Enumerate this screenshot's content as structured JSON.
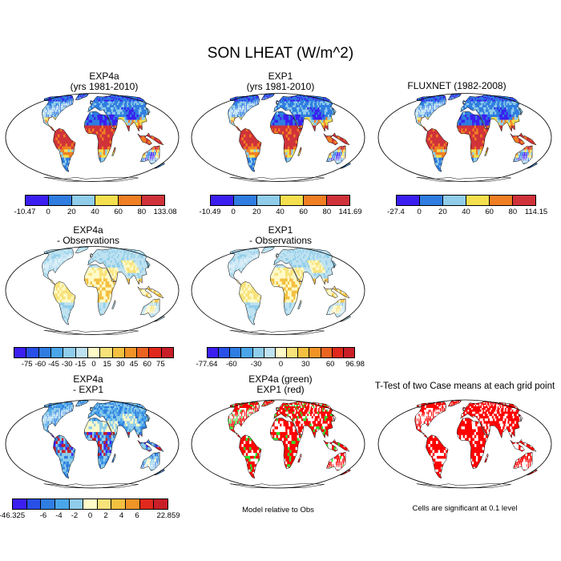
{
  "title": "SON LHEAT (W/m^2)",
  "panels": [
    {
      "id": "p1",
      "line1": "EXP4a",
      "line2": "(yrs 1981-2010)",
      "style": "heat"
    },
    {
      "id": "p2",
      "line1": "EXP1",
      "line2": "(yrs 1981-2010)",
      "style": "heat"
    },
    {
      "id": "p3",
      "line1": "FLUXNET (1982-2008)",
      "line2": "",
      "style": "heat"
    },
    {
      "id": "p4",
      "line1": "EXP4a",
      "line2": "- Observations",
      "style": "diff"
    },
    {
      "id": "p5",
      "line1": "EXP1",
      "line2": "- Observations",
      "style": "diff"
    },
    {
      "id": "p6",
      "line1": "EXP4a",
      "line2": "- EXP1",
      "style": "diff2"
    },
    {
      "id": "p7",
      "line1": "EXP4a (green)",
      "line2": "EXP1 (red)",
      "style": "rg"
    },
    {
      "id": "p8",
      "line1": "T-Test of two Case means at each grid point",
      "line2": "",
      "style": "ttest"
    }
  ],
  "colorbars": {
    "heat1": {
      "colors": [
        "#3b1ff0",
        "#2f7de0",
        "#8fcdea",
        "#f4e04e",
        "#f07e23",
        "#d0323a"
      ],
      "ticks": [
        "-10.47",
        "0",
        "20",
        "40",
        "60",
        "80",
        "133.08"
      ]
    },
    "heat2": {
      "colors": [
        "#3b1ff0",
        "#2f7de0",
        "#8fcdea",
        "#f4e04e",
        "#f07e23",
        "#d0323a"
      ],
      "ticks": [
        "-10.49",
        "0",
        "20",
        "40",
        "60",
        "80",
        "141.69"
      ]
    },
    "heat3": {
      "colors": [
        "#3b1ff0",
        "#2f7de0",
        "#8fcdea",
        "#f4e04e",
        "#f07e23",
        "#d0323a"
      ],
      "ticks": [
        "-27.4",
        "0",
        "20",
        "40",
        "60",
        "80",
        "114.15"
      ]
    },
    "diff1": {
      "colors": [
        "#3b1ff0",
        "#2850e8",
        "#2f7de0",
        "#4aa6e8",
        "#8fcdea",
        "#bfe2f0",
        "#fffac8",
        "#f8e27a",
        "#f4c040",
        "#f09428",
        "#ea6420",
        "#e0281c",
        "#c81e28"
      ],
      "ticks": [
        "",
        "-75",
        "-60",
        "-45",
        "-30",
        "-15",
        "0",
        "15",
        "30",
        "45",
        "60",
        "75",
        ""
      ]
    },
    "diff2": {
      "colors": [
        "#3b1ff0",
        "#2850e8",
        "#2f7de0",
        "#4aa6e8",
        "#8fcdea",
        "#bfe2f0",
        "#fffac8",
        "#f8e27a",
        "#f4c040",
        "#f09428",
        "#ea6420",
        "#e0281c",
        "#c81e28"
      ],
      "ticks": [
        "-77.64",
        "",
        "-60",
        "",
        "-30",
        "",
        "0",
        "",
        "30",
        "",
        "60",
        "",
        "96.98"
      ]
    },
    "diff3": {
      "colors": [
        "#3b1ff0",
        "#2850e8",
        "#2f7de0",
        "#4aa6e8",
        "#8fcdea",
        "#fffac8",
        "#f8e27a",
        "#f4c040",
        "#f09428",
        "#e0281c",
        "#c81e28"
      ],
      "ticks": [
        "-46.325",
        "",
        "-6",
        "-4",
        "-2",
        "0",
        "2",
        "4",
        "6",
        "",
        "22.859"
      ]
    }
  },
  "notes": {
    "model_rel": "Model relative to Obs",
    "cells_sig": "Cells are significant at 0.1 level"
  }
}
